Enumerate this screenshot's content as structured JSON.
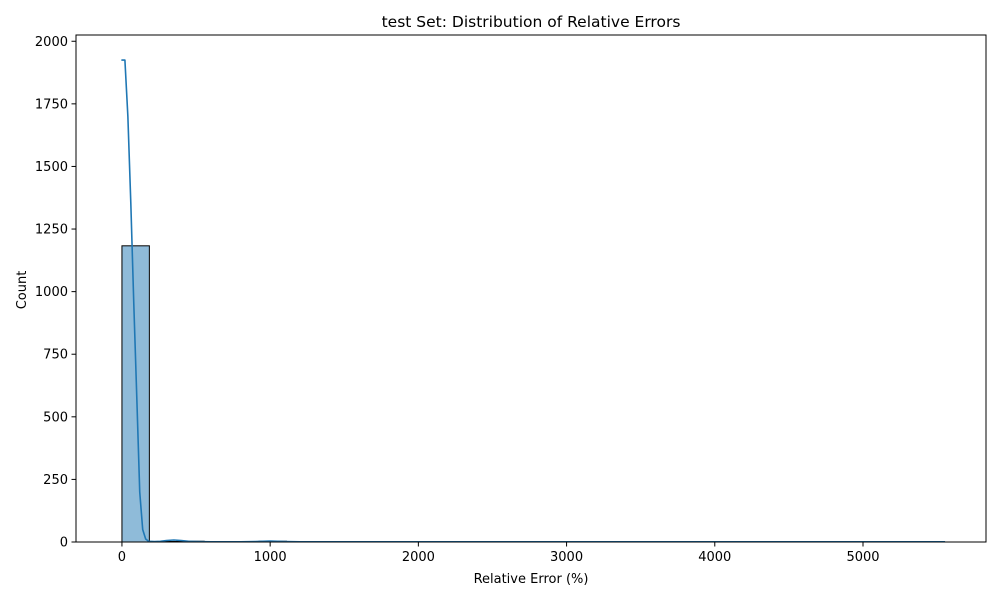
{
  "chart_data": {
    "type": "bar",
    "subtype": "histogram-with-kde",
    "title": "test Set: Distribution of Relative Errors",
    "xlabel": "Relative Error (%)",
    "ylabel": "Count",
    "xlim": [
      -310,
      5830
    ],
    "ylim": [
      0,
      2025
    ],
    "xticks": [
      0,
      1000,
      2000,
      3000,
      4000,
      5000
    ],
    "yticks": [
      0,
      250,
      500,
      750,
      1000,
      1250,
      1500,
      1750,
      2000
    ],
    "grid": false,
    "legend": "none",
    "colors": {
      "bar_fill": "#1f77b4",
      "bar_fill_opacity": 0.5,
      "bar_edge": "#000000",
      "kde_line": "#1f77b4"
    },
    "bins": [
      {
        "x0": 0,
        "x1": 185,
        "count": 1183
      },
      {
        "x0": 185,
        "x1": 370,
        "count": 2
      },
      {
        "x0": 370,
        "x1": 555,
        "count": 3
      },
      {
        "x0": 555,
        "x1": 740,
        "count": 1
      },
      {
        "x0": 740,
        "x1": 925,
        "count": 0
      },
      {
        "x0": 925,
        "x1": 1110,
        "count": 3
      },
      {
        "x0": 1110,
        "x1": 1295,
        "count": 1
      },
      {
        "x0": 5365,
        "x1": 5550,
        "count": 1
      }
    ],
    "kde": {
      "x": [
        0,
        20,
        40,
        60,
        80,
        100,
        120,
        140,
        160,
        180,
        220,
        260,
        300,
        350,
        400,
        450,
        500,
        600,
        700,
        800,
        900,
        1000,
        1050,
        1100,
        1200,
        1400,
        2000,
        3000,
        4000,
        5000,
        5300,
        5550
      ],
      "y": [
        1925,
        1925,
        1700,
        1350,
        950,
        580,
        200,
        50,
        12,
        3,
        2,
        3,
        6,
        8,
        6,
        3,
        2,
        1,
        1,
        1,
        2,
        4,
        3,
        2,
        1,
        1,
        1,
        1,
        1,
        1,
        1,
        1
      ]
    }
  }
}
